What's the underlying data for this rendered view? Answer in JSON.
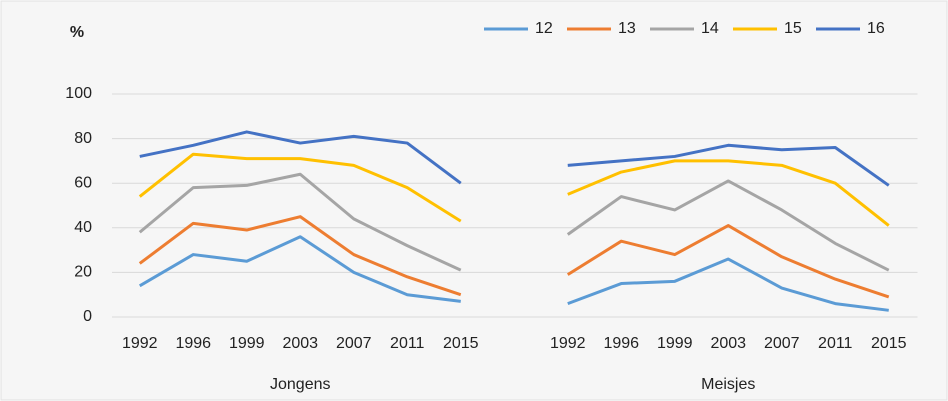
{
  "chart_data": {
    "type": "line",
    "y_label": "%",
    "categories": [
      "1992",
      "1996",
      "1999",
      "2003",
      "2007",
      "2011",
      "2015",
      null,
      "1992",
      "1996",
      "1999",
      "2003",
      "2007",
      "2011",
      "2015"
    ],
    "groups": [
      "Jongens",
      "Meisjes"
    ],
    "series": [
      {
        "name": "12",
        "color": "#5b9bd5",
        "values": [
          14,
          28,
          25,
          36,
          20,
          10,
          7,
          null,
          6,
          15,
          16,
          26,
          13,
          6,
          3
        ]
      },
      {
        "name": "13",
        "color": "#ed7d31",
        "values": [
          24,
          42,
          39,
          45,
          28,
          18,
          10,
          null,
          19,
          34,
          28,
          41,
          27,
          17,
          9
        ]
      },
      {
        "name": "14",
        "color": "#a5a5a5",
        "values": [
          38,
          58,
          59,
          64,
          44,
          32,
          21,
          null,
          37,
          54,
          48,
          61,
          48,
          33,
          21
        ]
      },
      {
        "name": "15",
        "color": "#ffc000",
        "values": [
          54,
          73,
          71,
          71,
          68,
          58,
          43,
          null,
          55,
          65,
          70,
          70,
          68,
          60,
          41
        ]
      },
      {
        "name": "16",
        "color": "#4472c4",
        "values": [
          72,
          77,
          83,
          78,
          81,
          78,
          60,
          null,
          68,
          70,
          72,
          77,
          75,
          76,
          59
        ]
      }
    ],
    "ylim": [
      0,
      100
    ],
    "yticks": [
      0,
      20,
      40,
      60,
      80,
      100
    ],
    "grid": true,
    "legend": "top-right"
  }
}
